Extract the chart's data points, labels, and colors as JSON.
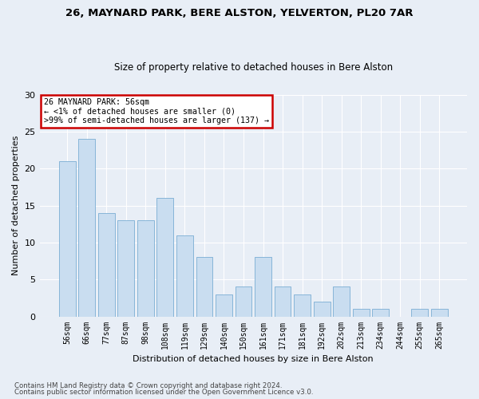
{
  "title1": "26, MAYNARD PARK, BERE ALSTON, YELVERTON, PL20 7AR",
  "title2": "Size of property relative to detached houses in Bere Alston",
  "xlabel": "Distribution of detached houses by size in Bere Alston",
  "ylabel": "Number of detached properties",
  "categories": [
    "56sqm",
    "66sqm",
    "77sqm",
    "87sqm",
    "98sqm",
    "108sqm",
    "119sqm",
    "129sqm",
    "140sqm",
    "150sqm",
    "161sqm",
    "171sqm",
    "181sqm",
    "192sqm",
    "202sqm",
    "213sqm",
    "234sqm",
    "244sqm",
    "255sqm",
    "265sqm"
  ],
  "values": [
    21,
    24,
    14,
    13,
    13,
    16,
    11,
    8,
    3,
    4,
    8,
    4,
    3,
    2,
    4,
    1,
    1,
    0,
    1,
    1
  ],
  "bar_color": "#c9ddf0",
  "bar_edge_color": "#7aadd4",
  "annotation_text": "26 MAYNARD PARK: 56sqm\n← <1% of detached houses are smaller (0)\n>99% of semi-detached houses are larger (137) →",
  "annotation_box_color": "#ffffff",
  "annotation_box_edge": "#cc0000",
  "footer1": "Contains HM Land Registry data © Crown copyright and database right 2024.",
  "footer2": "Contains public sector information licensed under the Open Government Licence v3.0.",
  "ylim": [
    0,
    30
  ],
  "yticks": [
    0,
    5,
    10,
    15,
    20,
    25,
    30
  ],
  "background_color": "#e8eef6",
  "grid_color": "#ffffff"
}
